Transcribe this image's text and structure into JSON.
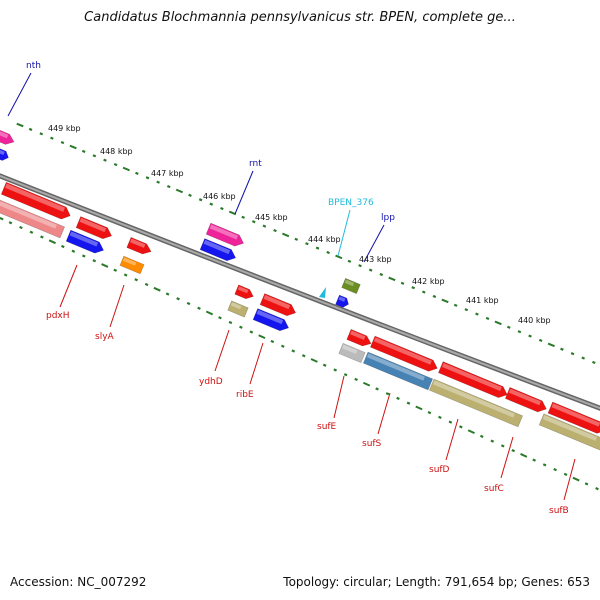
{
  "title": "Candidatus Blochmannia pennsylvanicus str. BPEN, complete ge...",
  "footer": {
    "accession": "Accession: NC_007292",
    "summary": "Topology: circular; Length: 791,654 bp; Genes: 653"
  },
  "colors": {
    "cds": "#ee1111",
    "cds_pale": "#ee8888",
    "blue": "#1515ee",
    "magenta": "#ee2299",
    "olive": "#bbb070",
    "dark_olive": "#6b8e23",
    "orange": "#ff8c00",
    "gray": "#bbbbbb",
    "steel": "#4682b4",
    "cyan": "#22bbdd",
    "label_red": "#cc1111",
    "label_blue": "#1111aa",
    "label_cyan": "#22bbdd",
    "ruler_green": "#2a7a2a",
    "backbone": "#888888"
  },
  "kbp_ticks": [
    "449 kbp",
    "448 kbp",
    "447 kbp",
    "446 kbp",
    "445 kbp",
    "444 kbp",
    "443 kbp",
    "442 kbp",
    "441 kbp",
    "440 kbp"
  ],
  "gene_labels": {
    "nth": "nth",
    "rnt": "rnt",
    "BPEN_376": "BPEN_376",
    "lpp": "lpp",
    "pdxH": "pdxH",
    "slyA": "slyA",
    "ydhD": "ydhD",
    "ribE": "ribE",
    "sufE": "sufE",
    "sufS": "sufS",
    "sufD": "sufD",
    "sufC": "sufC",
    "sufB": "sufB"
  }
}
